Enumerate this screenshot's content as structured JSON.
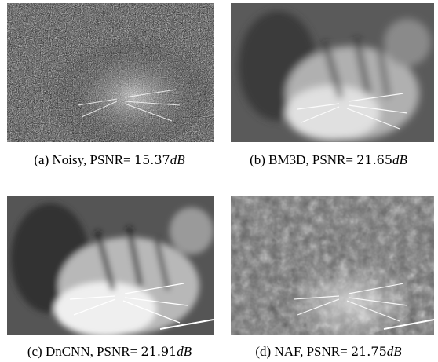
{
  "figure": {
    "panels": [
      {
        "id": "a",
        "tag": "(a)",
        "method": "Noisy, PSNR=",
        "value": "15.37",
        "unit": "dB",
        "image": "noisy-tiger"
      },
      {
        "id": "b",
        "tag": "(b)",
        "method": "BM3D, PSNR=",
        "value": "21.65",
        "unit": "dB",
        "image": "bm3d-tiger"
      },
      {
        "id": "c",
        "tag": "(c)",
        "method": "DnCNN, PSNR=",
        "value": "21.91",
        "unit": "dB",
        "image": "dncnn-tiger"
      },
      {
        "id": "d",
        "tag": "(d)",
        "method": "NAF, PSNR=",
        "value": "21.75",
        "unit": "dB",
        "image": "naf-tiger"
      }
    ]
  }
}
